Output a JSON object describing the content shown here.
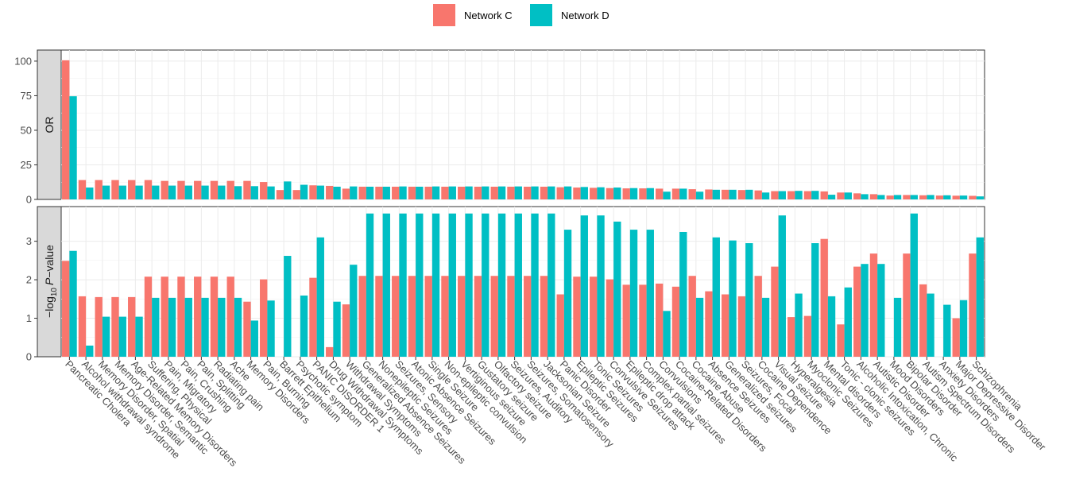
{
  "chart_data": {
    "type": "bar",
    "legend": {
      "position": "top"
    },
    "series": [
      {
        "name": "Network C",
        "color": "#F8766D"
      },
      {
        "name": "Network D",
        "color": "#00BFC4"
      }
    ],
    "categories": [
      "Pancreatic Cholera",
      "Alcohol withdrawal syndrome",
      "Memory Disorder, Spatial",
      "Memory Disorder, Semantic",
      "Age-Related Memory Disorders",
      "Suffering, Physical",
      "Pain, Migratory",
      "Pain, Crushing",
      "Pain, Splitting",
      "Radiating pain",
      "Ache",
      "Memory Disorders",
      "Pain, Burning",
      "Barrett Epithelium",
      "Psychotic symptom",
      "PANIC DISORDER 1",
      "Drug Withdrawal Symptoms",
      "Withdrawal Symptoms",
      "Generalized Absence Seizures",
      "Nonepileptic Seizures",
      "Seizures, Sensory",
      "Atonic Absence Seizures",
      "Single Seizure",
      "Non-epileptic convulsion",
      "Vertiginous seizure",
      "Gustatory seizure",
      "Olfactory seizure",
      "Seizures, Auditory",
      "Seizures, Somatosensory",
      "Jacksonian Seizure",
      "Panic Disorder",
      "Epileptic Seizures",
      "Tonic Seizures",
      "Convulsive Seizures",
      "Epileptic drop attack",
      "Complex partial seizures",
      "Convulsions",
      "Cocaine-Related Disorders",
      "Cocaine Abuse",
      "Absence Seizures",
      "Generalized seizures",
      "Seizures, Focal",
      "Cocaine Dependence",
      "Visual seizure",
      "Hyperalgesia",
      "Myoclonic Seizures",
      "Mental disorders",
      "Tonic - clonic seizures",
      "Alcoholic Intoxication, Chronic",
      "Autistic Disorder",
      "Mood Disorders",
      "Bipolar Disorder",
      "Autism Spectrum Disorders",
      "Anxiety Disorders",
      "Major Depressive Disorder",
      "Schizophrenia"
    ],
    "panels": [
      {
        "strip_label": "OR",
        "ylim": [
          0,
          108
        ],
        "yticks": [
          "0",
          "25",
          "50",
          "75",
          "100"
        ],
        "ytick_values": [
          0,
          25,
          50,
          75,
          100
        ],
        "values_c": [
          100.6,
          14.0,
          14.0,
          14.0,
          14.0,
          14.0,
          13.4,
          13.4,
          13.4,
          13.4,
          13.4,
          13.4,
          12.6,
          6.8,
          6.8,
          10.2,
          9.8,
          7.8,
          9.2,
          9.2,
          9.2,
          9.2,
          9.2,
          9.2,
          9.2,
          9.2,
          9.2,
          9.2,
          9.2,
          9.2,
          8.8,
          8.6,
          8.4,
          8.2,
          8.0,
          8.0,
          7.8,
          7.8,
          7.4,
          7.2,
          7.0,
          6.8,
          6.5,
          6.0,
          6.0,
          6.0,
          5.8,
          5.0,
          4.4,
          3.8,
          2.8,
          3.2,
          3.0,
          2.8,
          2.7,
          2.6
        ],
        "values_d": [
          74.6,
          8.6,
          10.0,
          10.0,
          10.0,
          10.0,
          10.0,
          10.0,
          10.0,
          10.0,
          9.6,
          9.6,
          9.4,
          13.0,
          10.6,
          10.0,
          9.2,
          9.4,
          9.2,
          9.2,
          9.4,
          9.2,
          9.4,
          9.4,
          9.4,
          9.4,
          9.4,
          9.4,
          9.4,
          9.4,
          9.4,
          9.0,
          8.8,
          8.6,
          8.2,
          8.2,
          5.6,
          7.8,
          5.6,
          7.0,
          7.0,
          7.0,
          5.0,
          6.0,
          6.2,
          6.2,
          3.4,
          5.0,
          3.8,
          3.2,
          3.2,
          3.2,
          3.2,
          3.0,
          2.8,
          2.2
        ]
      },
      {
        "strip_label_prefix": "−log",
        "strip_label_sub": "10",
        "strip_label_italic": "P",
        "strip_label_suffix": "−value",
        "ylim": [
          0,
          3.9
        ],
        "yticks": [
          "0",
          "1",
          "2",
          "3"
        ],
        "ytick_values": [
          0,
          1,
          2,
          3
        ],
        "values_c": [
          2.49,
          1.57,
          1.55,
          1.55,
          1.55,
          2.08,
          2.08,
          2.08,
          2.08,
          2.08,
          2.08,
          1.43,
          2.01,
          0,
          0,
          2.05,
          0.25,
          1.36,
          2.1,
          2.1,
          2.1,
          2.1,
          2.1,
          2.1,
          2.1,
          2.1,
          2.1,
          2.1,
          2.1,
          2.1,
          1.62,
          2.08,
          2.08,
          2.01,
          1.87,
          1.87,
          1.9,
          1.82,
          2.1,
          1.7,
          1.62,
          1.57,
          2.1,
          2.34,
          1.03,
          1.06,
          3.06,
          0.84,
          2.34,
          2.68,
          0,
          2.68,
          1.88,
          0,
          1.0,
          2.68
        ],
        "values_d": [
          2.75,
          0.29,
          1.04,
          1.04,
          1.04,
          1.53,
          1.53,
          1.53,
          1.53,
          1.53,
          1.53,
          0.94,
          1.46,
          2.62,
          1.59,
          3.1,
          1.43,
          2.39,
          3.72,
          3.72,
          3.72,
          3.72,
          3.72,
          3.72,
          3.72,
          3.72,
          3.72,
          3.72,
          3.72,
          3.72,
          3.3,
          3.67,
          3.67,
          3.51,
          3.3,
          3.3,
          1.19,
          3.24,
          1.53,
          3.1,
          3.02,
          2.95,
          1.53,
          3.67,
          1.64,
          2.95,
          1.57,
          1.8,
          2.41,
          2.41,
          1.53,
          3.72,
          1.64,
          1.35,
          1.47,
          3.1
        ]
      }
    ]
  }
}
